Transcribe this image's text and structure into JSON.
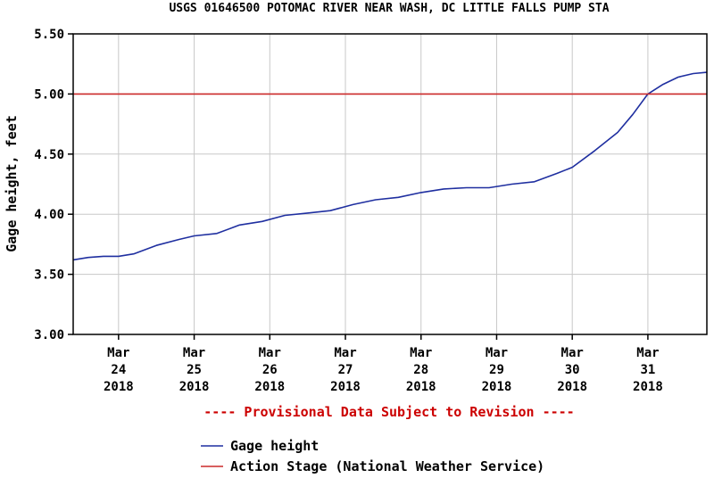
{
  "chart_data": {
    "type": "line",
    "title": "USGS 01646500 POTOMAC RIVER NEAR WASH, DC LITTLE FALLS PUMP STA",
    "ylabel": "Gage height, feet",
    "ylim": [
      3.0,
      5.5
    ],
    "yticks": [
      "3.00",
      "3.50",
      "4.00",
      "4.50",
      "5.00",
      "5.50"
    ],
    "xlim": [
      23.4,
      31.78
    ],
    "xticks": [
      {
        "x": 24,
        "lines": [
          "Mar",
          "24",
          "2018"
        ]
      },
      {
        "x": 25,
        "lines": [
          "Mar",
          "25",
          "2018"
        ]
      },
      {
        "x": 26,
        "lines": [
          "Mar",
          "26",
          "2018"
        ]
      },
      {
        "x": 27,
        "lines": [
          "Mar",
          "27",
          "2018"
        ]
      },
      {
        "x": 28,
        "lines": [
          "Mar",
          "28",
          "2018"
        ]
      },
      {
        "x": 29,
        "lines": [
          "Mar",
          "29",
          "2018"
        ]
      },
      {
        "x": 30,
        "lines": [
          "Mar",
          "30",
          "2018"
        ]
      },
      {
        "x": 31,
        "lines": [
          "Mar",
          "31",
          "2018"
        ]
      }
    ],
    "grid": true,
    "annotation": "---- Provisional Data Subject to Revision ----",
    "series": [
      {
        "name": "Gage height",
        "color": "#1f2fa0",
        "x": [
          23.4,
          23.6,
          23.8,
          24.0,
          24.2,
          24.5,
          24.8,
          25.0,
          25.3,
          25.6,
          25.9,
          26.2,
          26.5,
          26.8,
          27.1,
          27.4,
          27.7,
          28.0,
          28.3,
          28.6,
          28.9,
          29.2,
          29.5,
          29.8,
          30.0,
          30.3,
          30.6,
          30.8,
          31.0,
          31.2,
          31.4,
          31.6,
          31.78
        ],
        "values": [
          3.62,
          3.64,
          3.65,
          3.65,
          3.67,
          3.74,
          3.79,
          3.82,
          3.84,
          3.91,
          3.94,
          3.99,
          4.01,
          4.03,
          4.08,
          4.12,
          4.14,
          4.18,
          4.21,
          4.22,
          4.22,
          4.25,
          4.27,
          4.34,
          4.39,
          4.53,
          4.68,
          4.83,
          5.0,
          5.08,
          5.14,
          5.17,
          5.18
        ]
      },
      {
        "name": "Action Stage (National Weather Service)",
        "color": "#cc2a2a",
        "x": [
          23.4,
          31.78
        ],
        "values": [
          5.0,
          5.0
        ]
      }
    ]
  }
}
